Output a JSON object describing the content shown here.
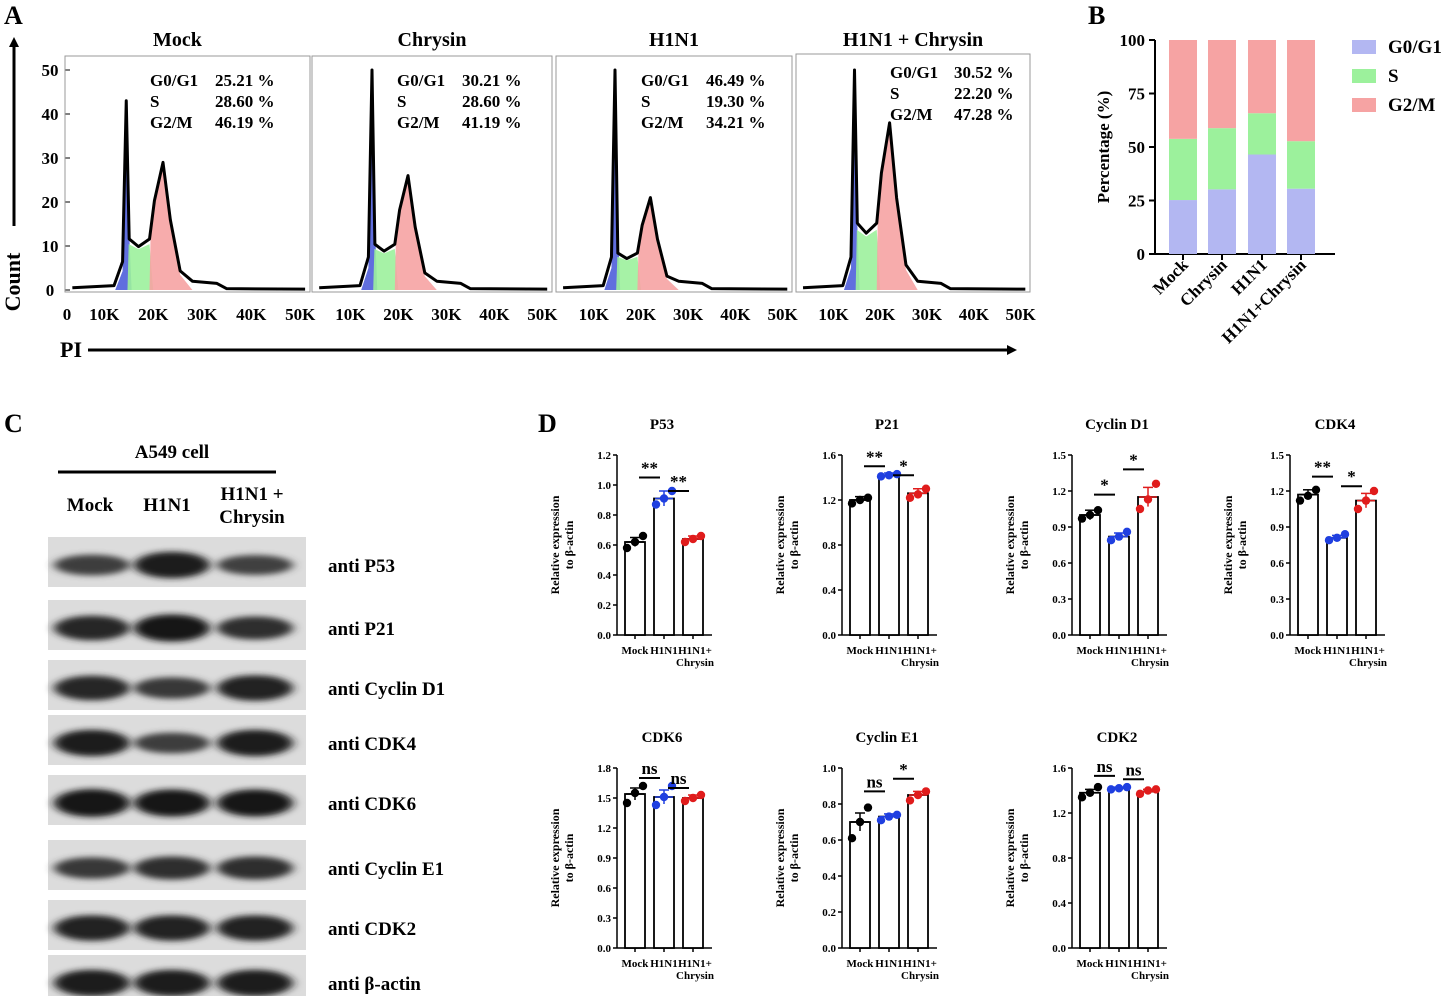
{
  "figure": {
    "panel_labels": [
      "A",
      "B",
      "C",
      "D"
    ],
    "colors": {
      "g0g1": "#b3b7f2",
      "s": "#9cf19c",
      "g2m": "#f6a3a3",
      "g0g1_peak": "#4455d8",
      "s_peak": "#33cc33",
      "g2m_peak": "#e36a6a",
      "mock": "#000000",
      "h1n1": "#1f3fe0",
      "chrysin": "#e01c1c"
    }
  },
  "panel_a": {
    "y_axis_label": "Count",
    "x_axis_label": "PI",
    "y_ticks": [
      "0",
      "10",
      "20",
      "30",
      "40",
      "50"
    ],
    "x_ticks": [
      "0",
      "10K",
      "20K",
      "30K",
      "40K",
      "50K"
    ],
    "histograms": [
      {
        "title": "Mock",
        "peak_g1": 43,
        "peak_g2": 29,
        "stats": [
          {
            "label": "G0/G1",
            "value": "25.21 %"
          },
          {
            "label": "S",
            "value": "28.60 %"
          },
          {
            "label": "G2/M",
            "value": "46.19 %"
          }
        ]
      },
      {
        "title": "Chrysin",
        "peak_g1": 50,
        "peak_g2": 26,
        "stats": [
          {
            "label": "G0/G1",
            "value": "30.21 %"
          },
          {
            "label": "S",
            "value": "28.60 %"
          },
          {
            "label": "G2/M",
            "value": "41.19 %"
          }
        ]
      },
      {
        "title": "H1N1",
        "peak_g1": 50,
        "peak_g2": 21,
        "stats": [
          {
            "label": "G0/G1",
            "value": "46.49 %"
          },
          {
            "label": "S",
            "value": "19.30 %"
          },
          {
            "label": "G2/M",
            "value": "34.21 %"
          }
        ]
      },
      {
        "title": "H1N1 + Chrysin",
        "peak_g1": 50,
        "peak_g2": 38,
        "stats": [
          {
            "label": "G0/G1",
            "value": "30.52 %"
          },
          {
            "label": "S",
            "value": "22.20 %"
          },
          {
            "label": "G2/M",
            "value": "47.28 %"
          }
        ]
      }
    ]
  },
  "chart_data": {
    "type": "bar",
    "title": "",
    "ylabel": "Percentage (%)",
    "ylim": [
      0,
      100
    ],
    "yticks": [
      "0",
      "25",
      "50",
      "75",
      "100"
    ],
    "categories": [
      "Mock",
      "Chrysin",
      "H1N1",
      "H1N1+Chrysin"
    ],
    "stacked": true,
    "series": [
      {
        "name": "G0/G1",
        "values": [
          25.21,
          30.21,
          46.49,
          30.52
        ]
      },
      {
        "name": "S",
        "values": [
          28.6,
          28.6,
          19.3,
          22.2
        ]
      },
      {
        "name": "G2/M",
        "values": [
          46.19,
          41.19,
          34.21,
          47.28
        ]
      }
    ]
  },
  "panel_c": {
    "header": "A549 cell",
    "lanes": [
      "Mock",
      "H1N1",
      "H1N1 +",
      "Chrysin"
    ],
    "blots": [
      {
        "label": "anti P53",
        "intensity": [
          0.55,
          0.9,
          0.5
        ]
      },
      {
        "label": "anti P21",
        "intensity": [
          0.8,
          0.95,
          0.7
        ]
      },
      {
        "label": "anti Cyclin D1",
        "intensity": [
          0.8,
          0.6,
          0.85
        ]
      },
      {
        "label": "anti CDK4",
        "intensity": [
          0.9,
          0.55,
          0.9
        ]
      },
      {
        "label": "anti CDK6",
        "intensity": [
          1.0,
          0.95,
          0.95
        ]
      },
      {
        "label": "anti Cyclin E1",
        "intensity": [
          0.6,
          0.7,
          0.7
        ]
      },
      {
        "label": "anti CDK2",
        "intensity": [
          0.85,
          0.85,
          0.85
        ]
      },
      {
        "label": "anti β-actin",
        "intensity": [
          0.9,
          0.9,
          0.9
        ]
      }
    ]
  },
  "panel_d": {
    "ylabel_line1": "Relative expression",
    "ylabel_line2": "to β-actin",
    "xlabels": [
      "Mock",
      "H1N1",
      "H1N1+",
      "Chrysin"
    ],
    "charts": [
      {
        "title": "P53",
        "ymax": 1.2,
        "ticks": [
          "0.0",
          "0.2",
          "0.4",
          "0.6",
          "0.8",
          "1.0",
          "1.2"
        ],
        "means": [
          0.62,
          0.91,
          0.64
        ],
        "sem": [
          0.03,
          0.05,
          0.02
        ],
        "points": [
          [
            0.58,
            0.62,
            0.66
          ],
          [
            0.87,
            0.91,
            0.96
          ],
          [
            0.62,
            0.64,
            0.66
          ]
        ],
        "sig": [
          {
            "label": "**",
            "from": 0,
            "to": 1,
            "y": 1.05
          },
          {
            "label": "**",
            "from": 1,
            "to": 2,
            "y": 0.96
          }
        ]
      },
      {
        "title": "P21",
        "ymax": 1.6,
        "ticks": [
          "0.0",
          "0.4",
          "0.8",
          "1.2",
          "1.6"
        ],
        "means": [
          1.2,
          1.42,
          1.26
        ],
        "sem": [
          0.03,
          0.02,
          0.04
        ],
        "points": [
          [
            1.17,
            1.2,
            1.22
          ],
          [
            1.41,
            1.42,
            1.43
          ],
          [
            1.22,
            1.25,
            1.3
          ]
        ],
        "sig": [
          {
            "label": "**",
            "from": 0,
            "to": 1,
            "y": 1.5
          },
          {
            "label": "*",
            "from": 1,
            "to": 2,
            "y": 1.42
          }
        ]
      },
      {
        "title": "Cyclin D1",
        "ymax": 1.5,
        "ticks": [
          "0.0",
          "0.3",
          "0.6",
          "0.9",
          "1.2",
          "1.5"
        ],
        "means": [
          1.0,
          0.82,
          1.15
        ],
        "sem": [
          0.04,
          0.03,
          0.08
        ],
        "points": [
          [
            0.97,
            1.0,
            1.04
          ],
          [
            0.79,
            0.82,
            0.86
          ],
          [
            1.05,
            1.13,
            1.26
          ]
        ],
        "sig": [
          {
            "label": "*",
            "from": 0,
            "to": 1,
            "y": 1.17
          },
          {
            "label": "*",
            "from": 1,
            "to": 2,
            "y": 1.38
          }
        ]
      },
      {
        "title": "CDK4",
        "ymax": 1.5,
        "ticks": [
          "0.0",
          "0.3",
          "0.6",
          "0.9",
          "1.2",
          "1.5"
        ],
        "means": [
          1.17,
          0.81,
          1.12
        ],
        "sem": [
          0.04,
          0.02,
          0.06
        ],
        "points": [
          [
            1.12,
            1.16,
            1.21
          ],
          [
            0.79,
            0.81,
            0.84
          ],
          [
            1.05,
            1.12,
            1.2
          ]
        ],
        "sig": [
          {
            "label": "**",
            "from": 0,
            "to": 1,
            "y": 1.32
          },
          {
            "label": "*",
            "from": 1,
            "to": 2,
            "y": 1.24
          }
        ]
      },
      {
        "title": "CDK6",
        "ymax": 1.8,
        "ticks": [
          "0.0",
          "0.3",
          "0.6",
          "0.9",
          "1.2",
          "1.5",
          "1.8"
        ],
        "means": [
          1.54,
          1.51,
          1.5
        ],
        "sem": [
          0.06,
          0.07,
          0.03
        ],
        "points": [
          [
            1.45,
            1.55,
            1.62
          ],
          [
            1.43,
            1.51,
            1.62
          ],
          [
            1.47,
            1.5,
            1.53
          ]
        ],
        "sig": [
          {
            "label": "ns",
            "from": 0,
            "to": 1,
            "y": 1.7
          },
          {
            "label": "ns",
            "from": 1,
            "to": 2,
            "y": 1.6
          }
        ]
      },
      {
        "title": "Cyclin E1",
        "ymax": 1.0,
        "ticks": [
          "0.0",
          "0.2",
          "0.4",
          "0.6",
          "0.8",
          "1.0"
        ],
        "means": [
          0.7,
          0.73,
          0.85
        ],
        "sem": [
          0.05,
          0.015,
          0.02
        ],
        "points": [
          [
            0.61,
            0.7,
            0.78
          ],
          [
            0.71,
            0.73,
            0.74
          ],
          [
            0.82,
            0.85,
            0.87
          ]
        ],
        "sig": [
          {
            "label": "ns",
            "from": 0,
            "to": 1,
            "y": 0.87
          },
          {
            "label": "*",
            "from": 1,
            "to": 2,
            "y": 0.94
          }
        ]
      },
      {
        "title": "CDK2",
        "ymax": 1.6,
        "ticks": [
          "0.0",
          "0.4",
          "0.8",
          "1.2",
          "1.6"
        ],
        "means": [
          1.38,
          1.42,
          1.39
        ],
        "sem": [
          0.03,
          0.01,
          0.02
        ],
        "points": [
          [
            1.34,
            1.38,
            1.43
          ],
          [
            1.41,
            1.42,
            1.43
          ],
          [
            1.37,
            1.4,
            1.41
          ]
        ],
        "sig": [
          {
            "label": "ns",
            "from": 0,
            "to": 1,
            "y": 1.53
          },
          {
            "label": "ns",
            "from": 1,
            "to": 2,
            "y": 1.5
          }
        ]
      }
    ]
  }
}
